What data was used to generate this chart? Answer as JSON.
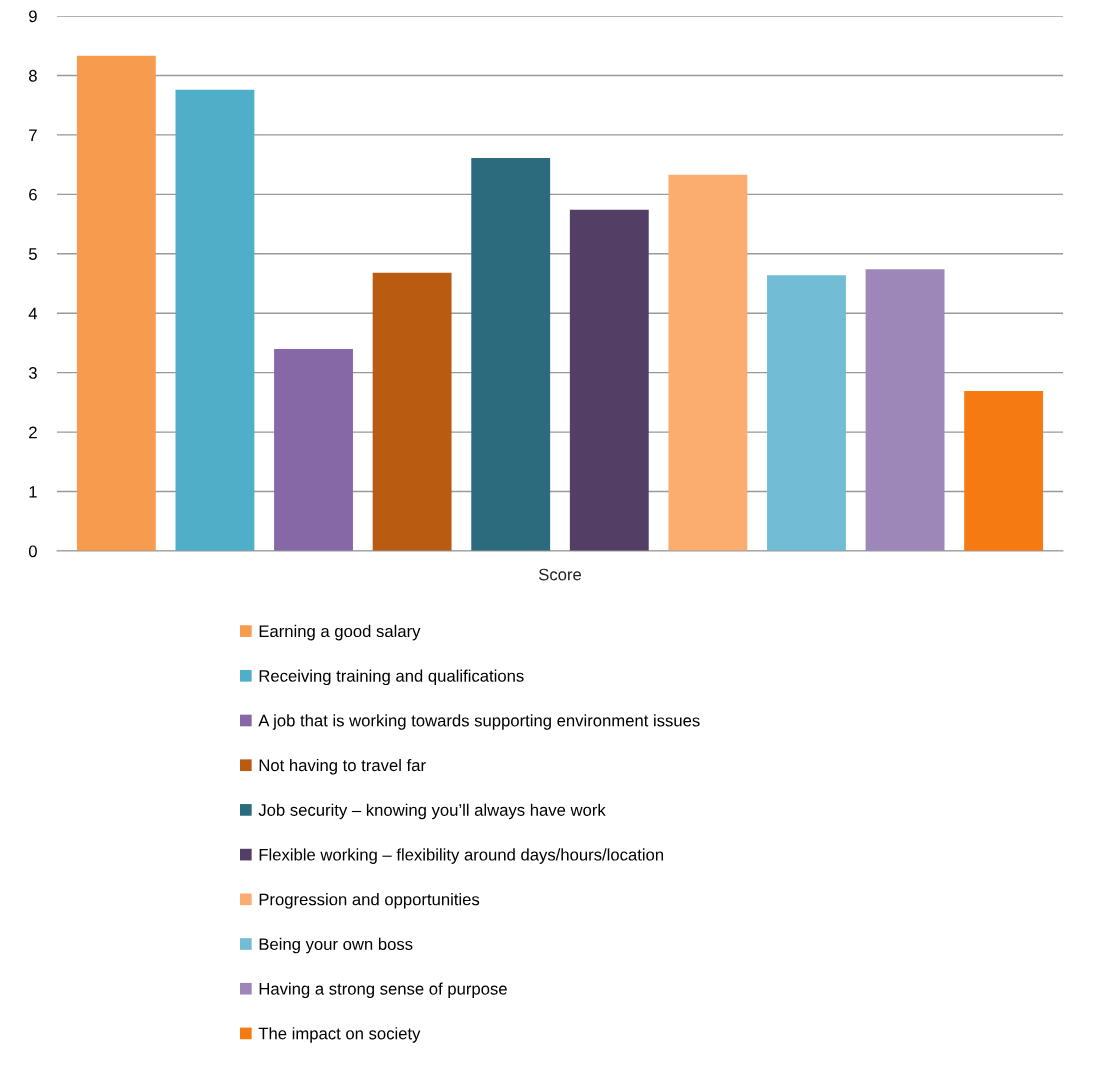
{
  "chart_data": {
    "type": "bar",
    "categories": [
      "Score"
    ],
    "series": [
      {
        "name": "Earning a good salary",
        "color": "#f79b4f",
        "values": [
          8.33
        ]
      },
      {
        "name": "Receiving training and qualifications",
        "color": "#4fafc8",
        "values": [
          7.76
        ]
      },
      {
        "name": "A job that is working towards supporting environment issues",
        "color": "#8668a6",
        "values": [
          3.4
        ]
      },
      {
        "name": "Not having to travel far",
        "color": "#b95b10",
        "values": [
          4.68
        ]
      },
      {
        "name": "Job security – knowing you’ll always have work",
        "color": "#2c6b7d",
        "values": [
          6.61
        ]
      },
      {
        "name": "Flexible working – flexibility around days/hours/location",
        "color": "#533f65",
        "values": [
          5.74
        ]
      },
      {
        "name": "Progression and opportunities",
        "color": "#fbad6f",
        "values": [
          6.33
        ]
      },
      {
        "name": "Being your own boss",
        "color": "#72bdd5",
        "values": [
          4.64
        ]
      },
      {
        "name": "Having a strong sense of purpose",
        "color": "#9d86b8",
        "values": [
          4.74
        ]
      },
      {
        "name": "The impact on society",
        "color": "#f57a12",
        "values": [
          2.69
        ]
      }
    ],
    "ylim": [
      0,
      9
    ],
    "yticks": [
      0,
      1,
      2,
      3,
      4,
      5,
      6,
      7,
      8,
      9
    ],
    "grid": "y",
    "legend": "bottom"
  }
}
